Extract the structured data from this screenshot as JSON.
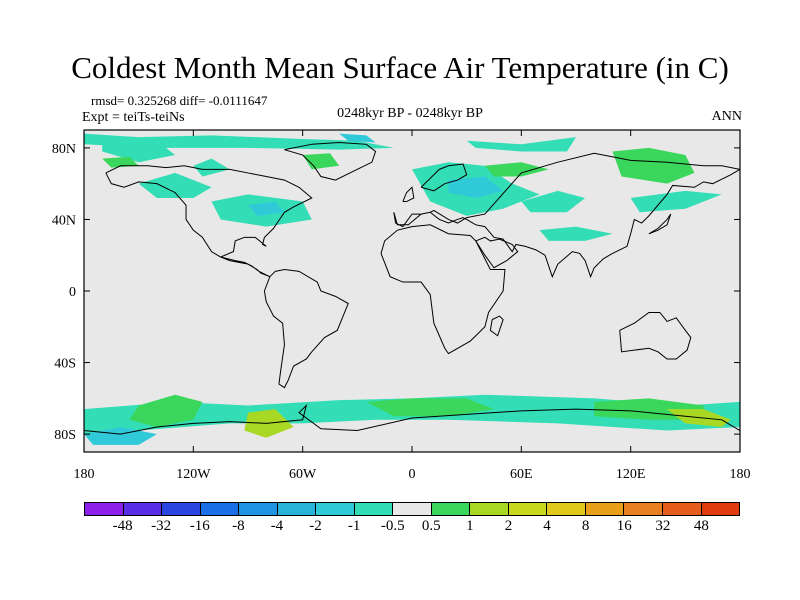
{
  "title": "Coldest Month Mean Surface Air Temperature (in C)",
  "stats": "rmsd= 0.325268 diff= -0.0111647",
  "experiment": "Expt = teiTs-teiNs",
  "period": "0248kyr BP - 0248kyr BP",
  "season": "ANN",
  "map": {
    "lon_range": [
      -180,
      180
    ],
    "lat_range": [
      -90,
      90
    ],
    "x_ticks": [
      {
        "lon": -180,
        "label": "180"
      },
      {
        "lon": -120,
        "label": "120W"
      },
      {
        "lon": -60,
        "label": "60W"
      },
      {
        "lon": 0,
        "label": "0"
      },
      {
        "lon": 60,
        "label": "60E"
      },
      {
        "lon": 120,
        "label": "120E"
      },
      {
        "lon": 180,
        "label": "180"
      }
    ],
    "y_ticks": [
      {
        "lat": 80,
        "label": "80N"
      },
      {
        "lat": 40,
        "label": "40N"
      },
      {
        "lat": 0,
        "label": "0"
      },
      {
        "lat": -40,
        "label": "40S"
      },
      {
        "lat": -80,
        "label": "80S"
      }
    ],
    "background_color": "#e8e8e8",
    "regions": [
      {
        "value_bin": "-1 to -0.5",
        "color": "#33ddb6",
        "lon": [
          -170,
          -160,
          -140,
          -130,
          -150,
          -170
        ],
        "lat": [
          86,
          82,
          84,
          76,
          72,
          78
        ]
      },
      {
        "value_bin": "-1 to -0.5",
        "color": "#33ddb6",
        "lon": [
          -180,
          -150,
          -110,
          -60,
          -30,
          -10,
          -40,
          -90,
          -140,
          -180
        ],
        "lat": [
          88,
          86,
          87,
          85,
          84,
          80,
          79,
          80,
          80,
          82
        ]
      },
      {
        "value_bin": "-1 to -0.5",
        "color": "#33ddb6",
        "lon": [
          -150,
          -130,
          -110,
          -120,
          -140
        ],
        "lat": [
          60,
          66,
          58,
          52,
          52
        ]
      },
      {
        "value_bin": "-1 to -0.5",
        "color": "#33ddb6",
        "lon": [
          -110,
          -90,
          -60,
          -55,
          -80,
          -105
        ],
        "lat": [
          50,
          54,
          50,
          40,
          36,
          40
        ]
      },
      {
        "value_bin": "-1 to -0.5",
        "color": "#33ddb6",
        "lon": [
          -120,
          -110,
          -100,
          -115
        ],
        "lat": [
          70,
          74,
          68,
          64
        ]
      },
      {
        "value_bin": "-1 to -0.5",
        "color": "#33ddb6",
        "lon": [
          0,
          20,
          40,
          55,
          70,
          50,
          30,
          10
        ],
        "lat": [
          68,
          72,
          70,
          60,
          54,
          46,
          42,
          50
        ]
      },
      {
        "value_bin": "-1 to -0.5",
        "color": "#33ddb6",
        "lon": [
          30,
          60,
          90,
          85,
          60,
          35
        ],
        "lat": [
          84,
          82,
          86,
          78,
          78,
          80
        ]
      },
      {
        "value_bin": "-1 to -0.5",
        "color": "#33ddb6",
        "lon": [
          60,
          80,
          95,
          85,
          65
        ],
        "lat": [
          50,
          56,
          52,
          44,
          44
        ]
      },
      {
        "value_bin": "-1 to -0.5",
        "color": "#33ddb6",
        "lon": [
          70,
          90,
          110,
          95,
          75
        ],
        "lat": [
          34,
          36,
          32,
          28,
          28
        ]
      },
      {
        "value_bin": "-1 to -0.5",
        "color": "#33ddb6",
        "lon": [
          120,
          150,
          170,
          150,
          125
        ],
        "lat": [
          52,
          56,
          54,
          46,
          44
        ]
      },
      {
        "value_bin": "-1 to -0.5",
        "color": "#33ddb6",
        "lon": [
          -180,
          -130,
          -90,
          -40,
          0,
          40,
          100,
          150,
          180,
          180,
          140,
          80,
          20,
          -20,
          -60,
          -100,
          -150,
          -180
        ],
        "lat": [
          -66,
          -62,
          -64,
          -61,
          -60,
          -58,
          -60,
          -64,
          -62,
          -76,
          -78,
          -74,
          -72,
          -72,
          -74,
          -74,
          -78,
          -80
        ]
      },
      {
        "value_bin": "-2 to -1",
        "color": "#30c9d8",
        "lon": [
          20,
          40,
          50,
          35,
          20
        ],
        "lat": [
          62,
          64,
          56,
          52,
          55
        ]
      },
      {
        "value_bin": "-2 to -1",
        "color": "#30c9d8",
        "lon": [
          -90,
          -75,
          -70,
          -85
        ],
        "lat": [
          48,
          50,
          44,
          42
        ]
      },
      {
        "value_bin": "-2 to -1",
        "color": "#30c9d8",
        "lon": [
          -40,
          -25,
          -20,
          -35
        ],
        "lat": [
          88,
          87,
          83,
          84
        ]
      },
      {
        "value_bin": "-2 to -1",
        "color": "#30c9d8",
        "lon": [
          -180,
          -160,
          -140,
          -150,
          -175
        ],
        "lat": [
          -80,
          -76,
          -80,
          -86,
          -86
        ]
      },
      {
        "value_bin": "0.5 to 1",
        "color": "#3bd75c",
        "lon": [
          -170,
          -155,
          -150,
          -165
        ],
        "lat": [
          74,
          75,
          70,
          69
        ]
      },
      {
        "value_bin": "0.5 to 1",
        "color": "#3bd75c",
        "lon": [
          -60,
          -45,
          -40,
          -55
        ],
        "lat": [
          76,
          77,
          70,
          68
        ]
      },
      {
        "value_bin": "0.5 to 1",
        "color": "#3bd75c",
        "lon": [
          110,
          130,
          150,
          155,
          140,
          115
        ],
        "lat": [
          78,
          80,
          76,
          66,
          60,
          64
        ]
      },
      {
        "value_bin": "0.5 to 1",
        "color": "#3bd75c",
        "lon": [
          40,
          60,
          75,
          60,
          45
        ],
        "lat": [
          70,
          72,
          68,
          64,
          64
        ]
      },
      {
        "value_bin": "0.5 to 1",
        "color": "#3bd75c",
        "lon": [
          -150,
          -130,
          -115,
          -120,
          -140,
          -155
        ],
        "lat": [
          -64,
          -58,
          -62,
          -72,
          -76,
          -72
        ]
      },
      {
        "value_bin": "0.5 to 1",
        "color": "#3bd75c",
        "lon": [
          -25,
          0,
          30,
          45,
          20,
          -10
        ],
        "lat": [
          -62,
          -60,
          -60,
          -66,
          -70,
          -70
        ]
      },
      {
        "value_bin": "0.5 to 1",
        "color": "#3bd75c",
        "lon": [
          100,
          130,
          160,
          160,
          130,
          100
        ],
        "lat": [
          -62,
          -60,
          -64,
          -72,
          -72,
          -70
        ]
      },
      {
        "value_bin": "1 to 2",
        "color": "#a8d824",
        "lon": [
          -90,
          -75,
          -65,
          -80,
          -92
        ],
        "lat": [
          -68,
          -66,
          -76,
          -82,
          -78
        ]
      },
      {
        "value_bin": "1 to 2",
        "color": "#a8d824",
        "lon": [
          140,
          160,
          175,
          170,
          150
        ],
        "lat": [
          -66,
          -66,
          -72,
          -76,
          -74
        ]
      }
    ],
    "coastlines": [
      {
        "name": "north-america",
        "lon": [
          -168,
          -160,
          -145,
          -135,
          -125,
          -115,
          -100,
          -90,
          -80,
          -70,
          -62,
          -55,
          -65,
          -70,
          -72,
          -76,
          -81,
          -82,
          -80,
          -86,
          -92,
          -97,
          -98,
          -105,
          -110,
          -115,
          -120,
          -124,
          -124,
          -130,
          -140,
          -150,
          -158,
          -165,
          -168
        ],
        "lat": [
          66,
          70,
          70,
          69,
          70,
          68,
          68,
          66,
          64,
          62,
          58,
          52,
          47,
          44,
          41,
          35,
          30,
          26,
          25,
          30,
          30,
          28,
          22,
          19,
          22,
          30,
          34,
          40,
          48,
          55,
          60,
          61,
          58,
          60,
          66
        ]
      },
      {
        "name": "central-america",
        "lon": [
          -105,
          -100,
          -95,
          -90,
          -85,
          -83,
          -78,
          -80,
          -84,
          -88,
          -92,
          -97,
          -105
        ],
        "lat": [
          19,
          17,
          16,
          15,
          12,
          10,
          8,
          9,
          11,
          14,
          16,
          17,
          19
        ]
      },
      {
        "name": "south-america",
        "lon": [
          -78,
          -75,
          -70,
          -62,
          -52,
          -50,
          -42,
          -35,
          -37,
          -41,
          -48,
          -55,
          -58,
          -65,
          -68,
          -70,
          -73,
          -72,
          -70,
          -71,
          -76,
          -80,
          -81,
          -78
        ],
        "lat": [
          8,
          11,
          12,
          11,
          5,
          0,
          -3,
          -7,
          -12,
          -22,
          -26,
          -34,
          -38,
          -42,
          -50,
          -54,
          -52,
          -44,
          -30,
          -18,
          -14,
          -6,
          0,
          8
        ]
      },
      {
        "name": "greenland",
        "lon": [
          -55,
          -40,
          -25,
          -20,
          -22,
          -30,
          -42,
          -50,
          -54,
          -60,
          -70,
          -55
        ],
        "lat": [
          82,
          83,
          82,
          78,
          72,
          68,
          62,
          64,
          70,
          76,
          79,
          82
        ]
      },
      {
        "name": "europe-asia",
        "lon": [
          -10,
          -8,
          -2,
          5,
          10,
          12,
          20,
          25,
          30,
          40,
          60,
          80,
          100,
          120,
          140,
          160,
          170,
          180,
          175,
          165,
          160,
          155,
          143,
          140,
          135,
          130,
          126,
          122,
          120,
          118,
          110,
          105,
          100,
          98,
          95,
          92,
          88,
          80,
          77,
          73,
          68,
          62,
          57,
          55,
          50,
          45,
          40,
          35,
          30,
          28,
          25,
          20,
          15,
          10,
          5,
          0,
          -5,
          -9,
          -10
        ],
        "lat": [
          44,
          37,
          37,
          43,
          44,
          45,
          40,
          38,
          41,
          43,
          66,
          72,
          77,
          73,
          72,
          70,
          70,
          68,
          65,
          60,
          61,
          58,
          59,
          54,
          48,
          42,
          38,
          40,
          32,
          25,
          21,
          18,
          13,
          8,
          17,
          21,
          22,
          15,
          8,
          20,
          23,
          25,
          26,
          22,
          29,
          30,
          36,
          37,
          40,
          41,
          40,
          38,
          40,
          44,
          43,
          43,
          36,
          38,
          44
        ]
      },
      {
        "name": "scandinavia",
        "lon": [
          5,
          10,
          15,
          20,
          28,
          30,
          25,
          18,
          12,
          5
        ],
        "lat": [
          58,
          63,
          68,
          70,
          71,
          65,
          62,
          60,
          56,
          58
        ]
      },
      {
        "name": "africa",
        "lon": [
          -17,
          -15,
          -8,
          0,
          10,
          20,
          32,
          35,
          43,
          51,
          50,
          42,
          40,
          35,
          32,
          20,
          18,
          12,
          10,
          5,
          -5,
          -12,
          -17
        ],
        "lat": [
          21,
          28,
          34,
          36,
          37,
          32,
          31,
          28,
          12,
          12,
          0,
          -12,
          -20,
          -25,
          -28,
          -35,
          -32,
          -18,
          -2,
          5,
          5,
          8,
          21
        ]
      },
      {
        "name": "arabia",
        "lon": [
          35,
          40,
          45,
          52,
          58,
          55,
          48,
          43,
          40,
          35
        ],
        "lat": [
          28,
          20,
          13,
          17,
          22,
          26,
          29,
          28,
          30,
          28
        ]
      },
      {
        "name": "madagascar",
        "lon": [
          44,
          48,
          50,
          47,
          43,
          44
        ],
        "lat": [
          -16,
          -14,
          -16,
          -25,
          -22,
          -16
        ]
      },
      {
        "name": "australia",
        "lon": [
          114,
          122,
          130,
          136,
          140,
          145,
          150,
          153,
          151,
          145,
          140,
          135,
          130,
          115,
          114
        ],
        "lat": [
          -22,
          -18,
          -12,
          -12,
          -17,
          -15,
          -22,
          -26,
          -33,
          -38,
          -38,
          -34,
          -32,
          -34,
          -22
        ]
      },
      {
        "name": "uk",
        "lon": [
          -5,
          -3,
          0,
          1,
          -3,
          -5
        ],
        "lat": [
          50,
          55,
          58,
          52,
          50,
          50
        ]
      },
      {
        "name": "japan",
        "lon": [
          130,
          135,
          140,
          142,
          140,
          135,
          130
        ],
        "lat": [
          32,
          34,
          37,
          43,
          40,
          35,
          32
        ]
      },
      {
        "name": "antarctica",
        "lon": [
          -180,
          -160,
          -140,
          -120,
          -100,
          -80,
          -60,
          -58,
          -62,
          -50,
          -30,
          0,
          30,
          60,
          90,
          120,
          150,
          170,
          180
        ],
        "lat": [
          -78,
          -80,
          -76,
          -74,
          -73,
          -74,
          -72,
          -64,
          -68,
          -77,
          -78,
          -71,
          -69,
          -67,
          -66,
          -67,
          -70,
          -72,
          -78
        ]
      }
    ]
  },
  "colorbar": {
    "colors": [
      "#8c1fe8",
      "#5a2de6",
      "#2a47e2",
      "#1a6ee6",
      "#1f93e2",
      "#28b4d8",
      "#30c9d8",
      "#33ddb6",
      "#e8e8e8",
      "#3bd75c",
      "#a8d824",
      "#c8d81e",
      "#e0c81c",
      "#e8a01a",
      "#e87f20",
      "#e65e1c",
      "#e03c10"
    ],
    "labels": [
      "-48",
      "-32",
      "-16",
      "-8",
      "-4",
      "-2",
      "-1",
      "-0.5",
      "0.5",
      "1",
      "2",
      "4",
      "8",
      "16",
      "32",
      "48"
    ]
  }
}
